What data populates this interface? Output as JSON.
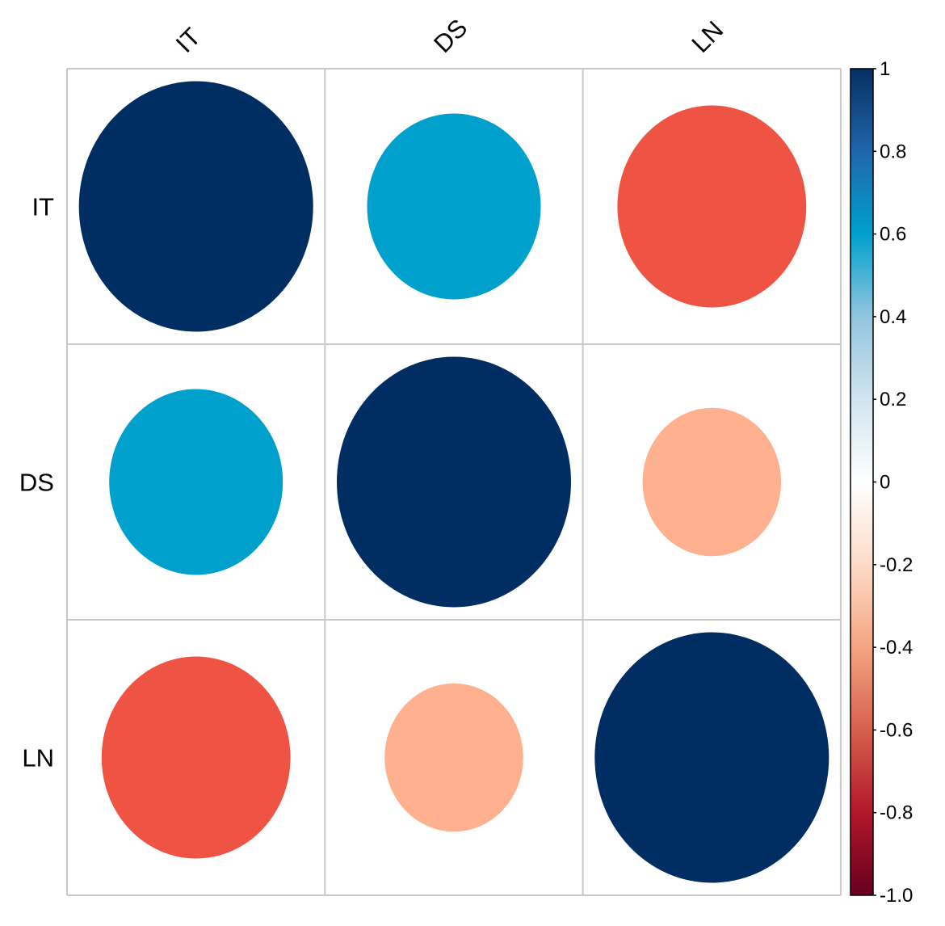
{
  "chart_data": {
    "type": "heatmap",
    "subtype": "correlation-circles",
    "variables": [
      "IT",
      "DS",
      "LN"
    ],
    "matrix": [
      [
        1.0,
        0.55,
        -0.65
      ],
      [
        0.55,
        1.0,
        -0.35
      ],
      [
        -0.65,
        -0.35,
        1.0
      ]
    ],
    "colorbar": {
      "range": [
        -1.0,
        1.0
      ],
      "ticks": [
        {
          "value": 1,
          "label": "1"
        },
        {
          "value": 0.8,
          "label": "0.8"
        },
        {
          "value": 0.6,
          "label": "0.6"
        },
        {
          "value": 0.4,
          "label": "0.4"
        },
        {
          "value": 0.2,
          "label": "0.2"
        },
        {
          "value": 0,
          "label": "0"
        },
        {
          "value": -0.2,
          "label": "-0.2"
        },
        {
          "value": -0.4,
          "label": "-0.4"
        },
        {
          "value": -0.6,
          "label": "-0.6"
        },
        {
          "value": -0.8,
          "label": "-0.8"
        },
        {
          "value": -1.0,
          "label": "-1.0"
        }
      ],
      "color_stops": [
        {
          "value": -1.0,
          "color": "#67001F"
        },
        {
          "value": -0.8,
          "color": "#B2182B"
        },
        {
          "value": -0.6,
          "color": "#D6604D"
        },
        {
          "value": -0.4,
          "color": "#F4A582"
        },
        {
          "value": -0.2,
          "color": "#FDDBC7"
        },
        {
          "value": 0.0,
          "color": "#FFFFFF"
        },
        {
          "value": 0.2,
          "color": "#D1E5F0"
        },
        {
          "value": 0.4,
          "color": "#92C5DE"
        },
        {
          "value": 0.6,
          "color": "#00A0CC"
        },
        {
          "value": 0.8,
          "color": "#2166AC"
        },
        {
          "value": 1.0,
          "color": "#053061"
        }
      ]
    },
    "cell_colors": [
      [
        "#002D62",
        "#00A0CC",
        "#EF5344"
      ],
      [
        "#00A0CC",
        "#002D62",
        "#FFB08F"
      ],
      [
        "#EF5344",
        "#FFB08F",
        "#002D62"
      ]
    ],
    "grid": true
  }
}
